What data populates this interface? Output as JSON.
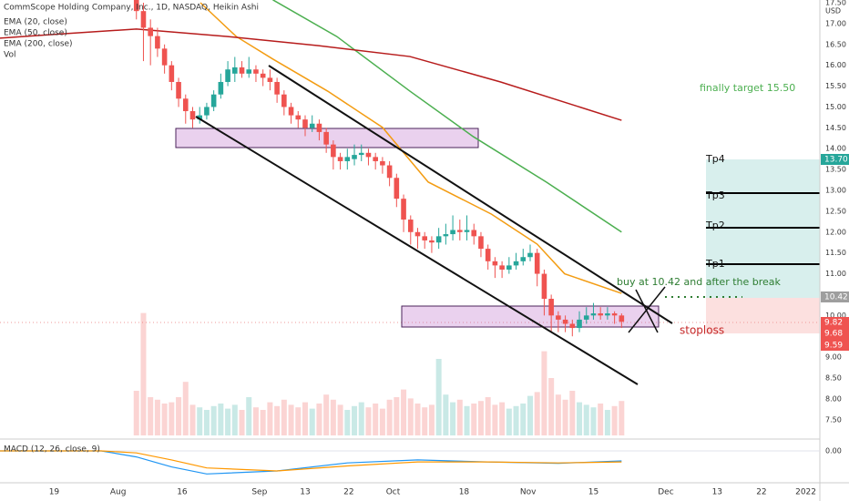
{
  "chart_data": {
    "type": "candlestick",
    "title": "CommScope Holding Company, Inc., 1D, NASDAQ, Heikin Ashi",
    "currency": "USD",
    "indicators": [
      "EMA (20, close)",
      "EMA (50, close)",
      "EMA (200, close)",
      "Vol"
    ],
    "up_color": "#26a69a",
    "down_color": "#ef5350",
    "xlim": [
      -19.4,
      97.2
    ],
    "xticks": [
      {
        "value": -11.7,
        "label": "19"
      },
      {
        "value": -2.6,
        "label": "Aug"
      },
      {
        "value": 6.5,
        "label": "16"
      },
      {
        "value": 17.5,
        "label": "Sep"
      },
      {
        "value": 24.0,
        "label": "13"
      },
      {
        "value": 30.2,
        "label": "22"
      },
      {
        "value": 36.5,
        "label": "Oct"
      },
      {
        "value": 46.6,
        "label": "18"
      },
      {
        "value": 55.7,
        "label": "Nov"
      },
      {
        "value": 65.0,
        "label": "15"
      },
      {
        "value": 75.3,
        "label": "Dec"
      },
      {
        "value": 82.6,
        "label": "13"
      },
      {
        "value": 88.9,
        "label": "22"
      },
      {
        "value": 95.2,
        "label": "2022"
      }
    ],
    "ylim": [
      7.08,
      17.5
    ],
    "yticks": [
      {
        "value": 7.5,
        "label": "7.50"
      },
      {
        "value": 8,
        "label": "8.00"
      },
      {
        "value": 8.5,
        "label": "8.50"
      },
      {
        "value": 9,
        "label": "9.00"
      },
      {
        "value": 9.5,
        "label": "9.50"
      },
      {
        "value": 10,
        "label": "10.00"
      },
      {
        "value": 10.5,
        "label": "10.50"
      },
      {
        "value": 11,
        "label": "11.00"
      },
      {
        "value": 11.5,
        "label": "11.50"
      },
      {
        "value": 12,
        "label": "12.00"
      },
      {
        "value": 12.5,
        "label": "12.50"
      },
      {
        "value": 13,
        "label": "13.00"
      },
      {
        "value": 13.5,
        "label": "13.50"
      },
      {
        "value": 14,
        "label": "14.00"
      },
      {
        "value": 14.5,
        "label": "14.50"
      },
      {
        "value": 15,
        "label": "15.00"
      },
      {
        "value": 15.5,
        "label": "15.50"
      },
      {
        "value": 16,
        "label": "16.00"
      },
      {
        "value": 16.5,
        "label": "16.50"
      },
      {
        "value": 17,
        "label": "17.00"
      },
      {
        "value": 17.5,
        "label": "17.50"
      }
    ],
    "open": [
      17.8,
      17.3,
      16.9,
      16.7,
      16.4,
      16.0,
      15.6,
      15.2,
      14.9,
      14.7,
      14.8,
      15.0,
      15.3,
      15.6,
      15.8,
      15.95,
      15.8,
      15.9,
      15.8,
      15.7,
      15.6,
      15.3,
      15.0,
      14.8,
      14.7,
      14.5,
      14.6,
      14.4,
      14.1,
      13.8,
      13.7,
      13.75,
      13.85,
      13.9,
      13.8,
      13.7,
      13.6,
      13.3,
      12.8,
      12.3,
      12.0,
      11.9,
      11.8,
      11.75,
      11.9,
      11.95,
      12.05,
      12.0,
      12.05,
      11.9,
      11.6,
      11.3,
      11.2,
      11.1,
      11.2,
      11.3,
      11.4,
      11.5,
      11.0,
      10.4,
      10.0,
      9.9,
      9.8,
      9.7,
      9.9,
      10.0,
      10.05,
      10.0,
      10.05,
      10.0
    ],
    "high": [
      17.9,
      17.5,
      17.1,
      16.9,
      16.5,
      16.1,
      15.7,
      15.3,
      15.0,
      15.0,
      15.1,
      15.4,
      15.8,
      16.1,
      16.2,
      16.1,
      16.2,
      16.0,
      15.9,
      15.9,
      15.7,
      15.4,
      15.1,
      14.9,
      14.8,
      14.8,
      14.7,
      14.5,
      14.2,
      13.9,
      14.0,
      14.1,
      14.1,
      14.0,
      13.9,
      13.8,
      13.7,
      13.4,
      12.9,
      12.4,
      12.1,
      12.0,
      11.9,
      12.1,
      12.2,
      12.4,
      12.3,
      12.4,
      12.2,
      12.0,
      11.7,
      11.4,
      11.3,
      11.4,
      11.5,
      11.6,
      11.7,
      11.6,
      11.1,
      10.5,
      10.1,
      10.0,
      9.9,
      10.1,
      10.2,
      10.3,
      10.2,
      10.2,
      10.1,
      10.05
    ],
    "low": [
      17.1,
      16.1,
      16.0,
      16.2,
      15.8,
      15.4,
      15.0,
      14.6,
      14.5,
      14.6,
      14.7,
      14.9,
      15.2,
      15.5,
      15.6,
      15.7,
      15.7,
      15.6,
      15.5,
      15.4,
      15.1,
      14.8,
      14.6,
      14.5,
      14.3,
      14.4,
      14.2,
      13.9,
      13.5,
      13.5,
      13.5,
      13.6,
      13.7,
      13.6,
      13.5,
      13.4,
      13.1,
      12.6,
      12.0,
      11.7,
      11.6,
      11.6,
      11.5,
      11.6,
      11.7,
      11.8,
      11.8,
      11.8,
      11.7,
      11.4,
      11.1,
      10.9,
      10.9,
      11.0,
      11.1,
      11.2,
      11.3,
      10.7,
      10.0,
      9.6,
      9.6,
      9.6,
      9.5,
      9.6,
      9.8,
      9.9,
      9.9,
      9.9,
      9.8,
      9.7
    ],
    "close": [
      17.3,
      16.9,
      16.7,
      16.4,
      16.0,
      15.6,
      15.2,
      14.9,
      14.7,
      14.8,
      15.0,
      15.3,
      15.6,
      15.9,
      15.95,
      15.8,
      15.9,
      15.8,
      15.7,
      15.6,
      15.3,
      15.0,
      14.8,
      14.7,
      14.5,
      14.6,
      14.4,
      14.1,
      13.8,
      13.7,
      13.8,
      13.85,
      13.9,
      13.8,
      13.7,
      13.6,
      13.3,
      12.8,
      12.3,
      12.0,
      11.9,
      11.8,
      11.75,
      11.9,
      11.95,
      12.05,
      12.0,
      12.05,
      11.9,
      11.6,
      11.3,
      11.2,
      11.1,
      11.2,
      11.3,
      11.4,
      11.5,
      11.0,
      10.4,
      10.0,
      9.9,
      9.8,
      9.7,
      9.9,
      10.0,
      10.05,
      10.0,
      10.05,
      10.0,
      9.85
    ],
    "volume_lim": [
      0,
      10
    ],
    "volume": [
      3.5,
      9.6,
      3.0,
      2.8,
      2.5,
      2.6,
      3.0,
      4.2,
      2.4,
      2.2,
      2.0,
      2.3,
      2.5,
      2.1,
      2.4,
      2.0,
      3.0,
      2.2,
      2.0,
      2.6,
      2.3,
      2.8,
      2.4,
      2.2,
      2.6,
      2.1,
      2.5,
      3.2,
      2.8,
      2.4,
      2.0,
      2.3,
      2.6,
      2.2,
      2.5,
      2.1,
      2.8,
      3.0,
      3.6,
      2.9,
      2.5,
      2.2,
      2.4,
      6.0,
      3.2,
      2.6,
      2.8,
      2.3,
      2.5,
      2.7,
      3.0,
      2.4,
      2.6,
      2.1,
      2.3,
      2.5,
      3.1,
      3.4,
      6.6,
      4.5,
      3.2,
      2.8,
      3.5,
      2.6,
      2.4,
      2.2,
      2.5,
      2.0,
      2.3,
      2.7
    ],
    "ema": [
      {
        "name": "EMA (20, close)",
        "color": "#f39c12",
        "x": [
          9.1,
          14.2,
          19.4,
          27.2,
          35,
          41.5,
          50.5,
          57,
          60.9,
          69
        ],
        "values": [
          17.5,
          16.69,
          16.15,
          15.38,
          14.51,
          13.2,
          12.43,
          11.71,
          11.0,
          10.53
        ]
      },
      {
        "name": "EMA (50, close)",
        "color": "#4caf50",
        "x": [
          19.4,
          28.5,
          38.9,
          47.9,
          58.3,
          69
        ],
        "values": [
          17.57,
          16.69,
          15.38,
          14.29,
          13.2,
          12.0
        ]
      },
      {
        "name": "EMA (200, close)",
        "color": "#b71c1c",
        "x": [
          -19.4,
          -11.7,
          0,
          13,
          25.9,
          38.9,
          51.8,
          69
        ],
        "values": [
          16.65,
          16.74,
          16.87,
          16.69,
          16.47,
          16.21,
          15.6,
          14.68
        ]
      }
    ],
    "macd_title": "MACD (12, 26, close, 9)",
    "macd_lim": [
      -1.5,
      0.5
    ],
    "macd_ticks": [
      {
        "value": 0,
        "label": "0.00"
      }
    ],
    "macd": [
      {
        "name": "MACD",
        "color": "#2196f3",
        "x": [
          -19.4,
          -5,
          0,
          5,
          10,
          20,
          30,
          40,
          50,
          60,
          69
        ],
        "values": [
          0.0,
          0.0,
          -0.3,
          -0.8,
          -1.15,
          -1.0,
          -0.6,
          -0.45,
          -0.55,
          -0.62,
          -0.5
        ]
      },
      {
        "name": "Signal",
        "color": "#ff9800",
        "x": [
          -19.4,
          -5,
          0,
          5,
          10,
          20,
          30,
          40,
          50,
          60,
          69
        ],
        "values": [
          0.0,
          0.0,
          -0.1,
          -0.45,
          -0.85,
          -1.0,
          -0.75,
          -0.55,
          -0.55,
          -0.6,
          -0.55
        ]
      }
    ],
    "annotations": {
      "target": "finally target 15.50",
      "buy": "buy at 10.42 and after the break",
      "tp1": "Tp1",
      "tp2": "Tp2",
      "tp3": "Tp3",
      "tp4": "Tp4",
      "stoploss": "stoploss"
    },
    "price_tags": {
      "tp": "13.70",
      "entry": "10.42",
      "p1": "9.82",
      "p2": "9.68",
      "p3": "9.59"
    }
  }
}
